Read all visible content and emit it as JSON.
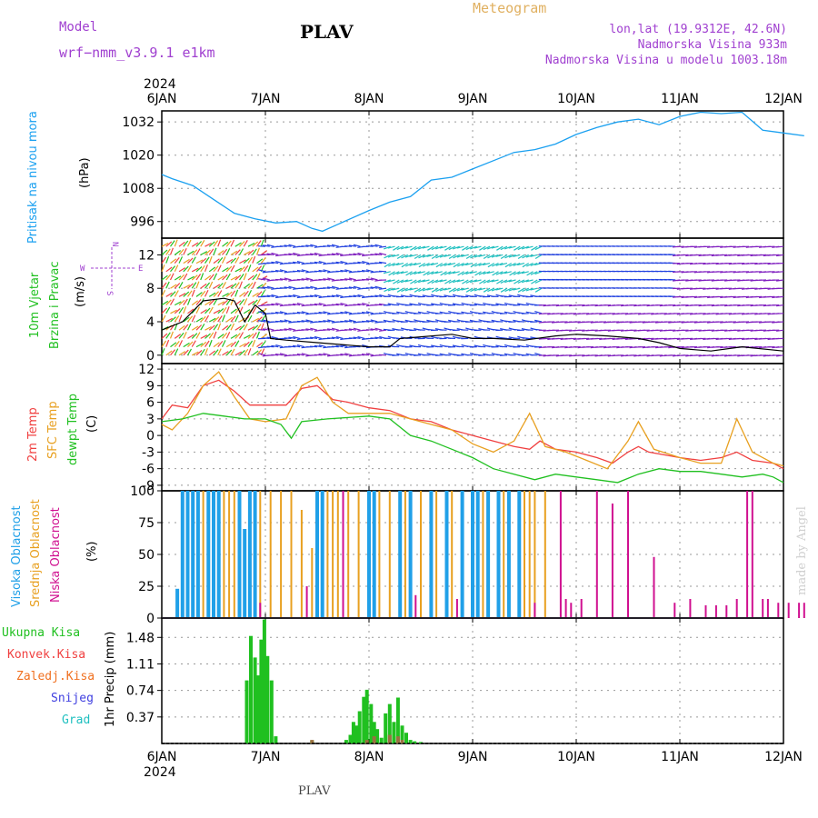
{
  "header": {
    "model_label": "Model",
    "model_name": "wrf−nmm_v3.9.1  e1km",
    "station": "PLAV",
    "product": "Meteogram",
    "lonlat": "lon,lat (19.9312E, 42.6N)",
    "altitude": "Nadmorska Visina 933m",
    "model_altitude": "Nadmorska Visina u modelu 1003.18m"
  },
  "top_year": "2024",
  "bottom_year": "2024",
  "footer_station": "PLAV",
  "watermark": "made by Angel",
  "colors": {
    "pressure": "#1aa0f0",
    "temp2m": "#f04040",
    "sfc": "#e8a020",
    "dew": "#20c020",
    "high": "#20a0e8",
    "mid": "#e8a020",
    "low": "#d01090",
    "rain": "#20c020",
    "conv": "#e84040",
    "frozen": "#f07020",
    "snow": "#4040e0",
    "graupel": "#20c0c0",
    "title_purple": "#a040d0",
    "title_tan": "#e0b060"
  },
  "chart_data": [
    {
      "type": "line",
      "id": "pressure",
      "ylabel_lines": [
        "Pritisak na nivou mora",
        "(hPa)"
      ],
      "x_ticks": [
        "6JAN",
        "7JAN",
        "8JAN",
        "9JAN",
        "10JAN",
        "11JAN",
        "12JAN"
      ],
      "y_ticks": [
        996,
        1008,
        1020,
        1032
      ],
      "ylim": [
        990,
        1036
      ],
      "grid": true,
      "series": [
        {
          "values": [
            [
              0,
              1013
            ],
            [
              0.1,
              1011.5
            ],
            [
              0.3,
              1009
            ],
            [
              0.5,
              1004
            ],
            [
              0.7,
              999
            ],
            [
              0.9,
              997
            ],
            [
              1.1,
              995.5
            ],
            [
              1.3,
              996
            ],
            [
              1.45,
              993.5
            ],
            [
              1.55,
              992.5
            ],
            [
              1.7,
              995
            ],
            [
              2.0,
              1000
            ],
            [
              2.2,
              1003
            ],
            [
              2.4,
              1005
            ],
            [
              2.6,
              1011
            ],
            [
              2.8,
              1012
            ],
            [
              3.0,
              1015
            ],
            [
              3.2,
              1018
            ],
            [
              3.4,
              1021
            ],
            [
              3.6,
              1022
            ],
            [
              3.8,
              1024
            ],
            [
              4.0,
              1027.5
            ],
            [
              4.2,
              1030
            ],
            [
              4.4,
              1032
            ],
            [
              4.6,
              1033
            ],
            [
              4.8,
              1031
            ],
            [
              5.0,
              1034
            ],
            [
              5.2,
              1035.5
            ],
            [
              5.4,
              1035
            ],
            [
              5.6,
              1035.5
            ],
            [
              5.8,
              1029
            ],
            [
              6.0,
              1028
            ],
            [
              6.2,
              1027
            ]
          ]
        }
      ]
    },
    {
      "type": "scatter",
      "id": "wind",
      "ylabel_lines": [
        "10m Vjetar",
        "Brzina i Pravac",
        "(m/s)"
      ],
      "compass": {
        "n": "N",
        "s": "S",
        "e": "E",
        "w": "W"
      },
      "y_ticks": [
        0,
        4,
        8,
        12
      ],
      "ylim": [
        -1,
        14
      ],
      "grid": true,
      "speed_line": [
        [
          0,
          3
        ],
        [
          0.2,
          4
        ],
        [
          0.4,
          6.5
        ],
        [
          0.6,
          6.8
        ],
        [
          0.7,
          6.5
        ],
        [
          0.8,
          4
        ],
        [
          0.9,
          6
        ],
        [
          1.0,
          5
        ],
        [
          1.05,
          2
        ],
        [
          1.2,
          1.8
        ],
        [
          1.5,
          1.5
        ],
        [
          2.0,
          1
        ],
        [
          2.2,
          1
        ],
        [
          2.3,
          2
        ],
        [
          2.5,
          2.2
        ],
        [
          2.8,
          2.5
        ],
        [
          3.0,
          2
        ],
        [
          3.2,
          2
        ],
        [
          3.5,
          1.8
        ],
        [
          3.8,
          2.3
        ],
        [
          4.0,
          2.5
        ],
        [
          4.3,
          2.3
        ],
        [
          4.6,
          2
        ],
        [
          4.8,
          1.5
        ],
        [
          5.0,
          0.8
        ],
        [
          5.3,
          0.5
        ],
        [
          5.6,
          1
        ],
        [
          6.0,
          0.5
        ]
      ],
      "layer_colors": [
        "#20c020",
        "#e8a020",
        "#f04040",
        "#2040e0",
        "#20c0c0",
        "#8020c0"
      ]
    },
    {
      "type": "line",
      "id": "temperature",
      "ylabel_lines": [
        "2m Temp",
        "SFC Temp",
        "dewpt Temp",
        "(C)"
      ],
      "y_ticks": [
        -9,
        -6,
        -3,
        0,
        3,
        6,
        9,
        12
      ],
      "ylim": [
        -10,
        13
      ],
      "grid": true,
      "series": [
        {
          "name": "2m Temp",
          "values": [
            [
              0,
              3
            ],
            [
              0.1,
              5.5
            ],
            [
              0.25,
              5
            ],
            [
              0.4,
              9
            ],
            [
              0.55,
              10
            ],
            [
              0.7,
              8
            ],
            [
              0.85,
              5.5
            ],
            [
              1.0,
              5.5
            ],
            [
              1.2,
              5.5
            ],
            [
              1.35,
              8.5
            ],
            [
              1.5,
              9
            ],
            [
              1.65,
              6.5
            ],
            [
              1.8,
              6
            ],
            [
              2.0,
              5
            ],
            [
              2.2,
              4.5
            ],
            [
              2.4,
              3
            ],
            [
              2.6,
              2.5
            ],
            [
              2.8,
              1
            ],
            [
              3.0,
              0
            ],
            [
              3.2,
              -1
            ],
            [
              3.4,
              -2
            ],
            [
              3.55,
              -2.5
            ],
            [
              3.65,
              -1
            ],
            [
              3.8,
              -2.5
            ],
            [
              4.0,
              -3
            ],
            [
              4.2,
              -4
            ],
            [
              4.35,
              -5
            ],
            [
              4.5,
              -3
            ],
            [
              4.6,
              -2
            ],
            [
              4.7,
              -3
            ],
            [
              5.0,
              -4
            ],
            [
              5.2,
              -4.5
            ],
            [
              5.4,
              -4
            ],
            [
              5.55,
              -3
            ],
            [
              5.7,
              -4.5
            ],
            [
              5.9,
              -5
            ],
            [
              6.0,
              -6
            ]
          ]
        },
        {
          "name": "SFC Temp",
          "values": [
            [
              0,
              2
            ],
            [
              0.1,
              1
            ],
            [
              0.25,
              4
            ],
            [
              0.4,
              9
            ],
            [
              0.55,
              11.5
            ],
            [
              0.7,
              7
            ],
            [
              0.85,
              3
            ],
            [
              1.0,
              2.5
            ],
            [
              1.2,
              3
            ],
            [
              1.35,
              9
            ],
            [
              1.5,
              10.5
            ],
            [
              1.65,
              6
            ],
            [
              1.8,
              4
            ],
            [
              2.0,
              4
            ],
            [
              2.2,
              4
            ],
            [
              2.4,
              3
            ],
            [
              2.6,
              2
            ],
            [
              2.8,
              1
            ],
            [
              3.0,
              -1.5
            ],
            [
              3.2,
              -3
            ],
            [
              3.4,
              -1
            ],
            [
              3.55,
              4
            ],
            [
              3.7,
              -2
            ],
            [
              3.9,
              -3
            ],
            [
              4.1,
              -4.5
            ],
            [
              4.3,
              -6
            ],
            [
              4.5,
              -1
            ],
            [
              4.6,
              2.5
            ],
            [
              4.75,
              -2.5
            ],
            [
              5.0,
              -4
            ],
            [
              5.2,
              -5
            ],
            [
              5.4,
              -5
            ],
            [
              5.55,
              3
            ],
            [
              5.7,
              -3
            ],
            [
              5.9,
              -5
            ],
            [
              6.0,
              -5.5
            ]
          ]
        },
        {
          "name": "dewpt Temp",
          "values": [
            [
              0,
              2.5
            ],
            [
              0.2,
              3
            ],
            [
              0.4,
              4
            ],
            [
              0.6,
              3.5
            ],
            [
              0.8,
              3
            ],
            [
              1.0,
              3
            ],
            [
              1.15,
              2
            ],
            [
              1.25,
              -0.5
            ],
            [
              1.35,
              2.5
            ],
            [
              1.6,
              3
            ],
            [
              2.0,
              3.5
            ],
            [
              2.2,
              3
            ],
            [
              2.4,
              0
            ],
            [
              2.6,
              -1
            ],
            [
              2.8,
              -2.5
            ],
            [
              3.0,
              -4
            ],
            [
              3.2,
              -6
            ],
            [
              3.4,
              -7
            ],
            [
              3.6,
              -8
            ],
            [
              3.8,
              -7
            ],
            [
              4.0,
              -7.5
            ],
            [
              4.2,
              -8
            ],
            [
              4.4,
              -8.5
            ],
            [
              4.6,
              -7
            ],
            [
              4.8,
              -6
            ],
            [
              5.0,
              -6.5
            ],
            [
              5.2,
              -6.5
            ],
            [
              5.4,
              -7
            ],
            [
              5.6,
              -7.5
            ],
            [
              5.8,
              -7
            ],
            [
              5.9,
              -7.5
            ],
            [
              6.0,
              -8.5
            ]
          ]
        }
      ]
    },
    {
      "type": "bar",
      "id": "clouds",
      "ylabel_lines": [
        "Visoka Oblacnost",
        "Srednja Oblacnost",
        "Niska Oblacnost",
        "(%)"
      ],
      "y_ticks": [
        0,
        25,
        50,
        75,
        100
      ],
      "ylim": [
        0,
        100
      ],
      "grid": true,
      "high": [
        [
          0.15,
          23
        ],
        [
          0.2,
          100
        ],
        [
          0.25,
          100
        ],
        [
          0.3,
          100
        ],
        [
          0.35,
          100
        ],
        [
          0.45,
          100
        ],
        [
          0.5,
          100
        ],
        [
          0.55,
          100
        ],
        [
          0.75,
          100
        ],
        [
          0.8,
          70
        ],
        [
          0.85,
          100
        ],
        [
          0.9,
          100
        ],
        [
          1.5,
          100
        ],
        [
          1.55,
          100
        ],
        [
          2.0,
          100
        ],
        [
          2.05,
          100
        ],
        [
          2.3,
          100
        ],
        [
          2.4,
          100
        ],
        [
          2.6,
          100
        ],
        [
          2.75,
          100
        ],
        [
          2.9,
          100
        ],
        [
          3.0,
          100
        ],
        [
          3.05,
          100
        ],
        [
          3.15,
          100
        ],
        [
          3.25,
          100
        ],
        [
          3.35,
          100
        ],
        [
          3.45,
          100
        ]
      ],
      "mid": [
        [
          0.4,
          100
        ],
        [
          0.6,
          100
        ],
        [
          0.65,
          100
        ],
        [
          0.7,
          100
        ],
        [
          0.95,
          100
        ],
        [
          1.05,
          100
        ],
        [
          1.15,
          100
        ],
        [
          1.25,
          100
        ],
        [
          1.35,
          85
        ],
        [
          1.45,
          55
        ],
        [
          1.6,
          100
        ],
        [
          1.65,
          100
        ],
        [
          1.7,
          100
        ],
        [
          1.8,
          100
        ],
        [
          1.9,
          100
        ],
        [
          2.1,
          100
        ],
        [
          2.2,
          100
        ],
        [
          2.35,
          100
        ],
        [
          2.5,
          100
        ],
        [
          2.65,
          100
        ],
        [
          2.8,
          100
        ],
        [
          3.1,
          100
        ],
        [
          3.3,
          100
        ],
        [
          3.5,
          100
        ],
        [
          3.55,
          100
        ],
        [
          3.6,
          100
        ],
        [
          3.7,
          100
        ]
      ],
      "low": [
        [
          0.95,
          12
        ],
        [
          1.4,
          25
        ],
        [
          1.75,
          100
        ],
        [
          2.45,
          18
        ],
        [
          2.85,
          15
        ],
        [
          3.6,
          12
        ],
        [
          3.85,
          100
        ],
        [
          3.9,
          15
        ],
        [
          3.95,
          12
        ],
        [
          4.05,
          15
        ],
        [
          4.2,
          100
        ],
        [
          4.35,
          90
        ],
        [
          4.5,
          100
        ],
        [
          4.75,
          48
        ],
        [
          4.95,
          12
        ],
        [
          5.1,
          15
        ],
        [
          5.25,
          10
        ],
        [
          5.35,
          10
        ],
        [
          5.45,
          10
        ],
        [
          5.55,
          15
        ],
        [
          5.65,
          100
        ],
        [
          5.7,
          100
        ],
        [
          5.8,
          15
        ],
        [
          5.85,
          15
        ],
        [
          5.95,
          12
        ],
        [
          6.05,
          12
        ],
        [
          6.15,
          12
        ],
        [
          6.2,
          12
        ]
      ]
    },
    {
      "type": "bar",
      "id": "precipitation",
      "ylabel_lines": [
        "1hr Precip (mm)"
      ],
      "legend": [
        "Ukupna Kisa",
        "Konvek.Kisa",
        "Zaledj.Kisa",
        "Snijeg",
        "Grad"
      ],
      "y_ticks": [
        0.37,
        0.74,
        1.11,
        1.48
      ],
      "ylim": [
        0,
        1.75
      ],
      "grid": true,
      "x_ticks": [
        "6JAN",
        "7JAN",
        "8JAN",
        "9JAN",
        "10JAN",
        "11JAN",
        "12JAN"
      ],
      "rain": [
        [
          0.82,
          0.88
        ],
        [
          0.86,
          1.5
        ],
        [
          0.9,
          1.2
        ],
        [
          0.93,
          0.95
        ],
        [
          0.96,
          1.45
        ],
        [
          0.99,
          1.73
        ],
        [
          1.02,
          1.22
        ],
        [
          1.06,
          0.88
        ],
        [
          1.1,
          0.1
        ],
        [
          1.45,
          0.04
        ],
        [
          1.78,
          0.05
        ],
        [
          1.82,
          0.12
        ],
        [
          1.85,
          0.3
        ],
        [
          1.88,
          0.25
        ],
        [
          1.91,
          0.45
        ],
        [
          1.95,
          0.65
        ],
        [
          1.98,
          0.75
        ],
        [
          2.02,
          0.55
        ],
        [
          2.05,
          0.3
        ],
        [
          2.08,
          0.2
        ],
        [
          2.12,
          0.08
        ],
        [
          2.16,
          0.42
        ],
        [
          2.2,
          0.55
        ],
        [
          2.24,
          0.3
        ],
        [
          2.28,
          0.64
        ],
        [
          2.32,
          0.25
        ],
        [
          2.36,
          0.15
        ],
        [
          2.4,
          0.05
        ],
        [
          2.44,
          0.03
        ],
        [
          2.5,
          0.02
        ]
      ],
      "frozen": [
        [
          1.45,
          0.05
        ],
        [
          1.98,
          0.05
        ],
        [
          2.05,
          0.1
        ],
        [
          2.2,
          0.12
        ],
        [
          2.28,
          0.1
        ],
        [
          2.32,
          0.05
        ]
      ]
    }
  ]
}
